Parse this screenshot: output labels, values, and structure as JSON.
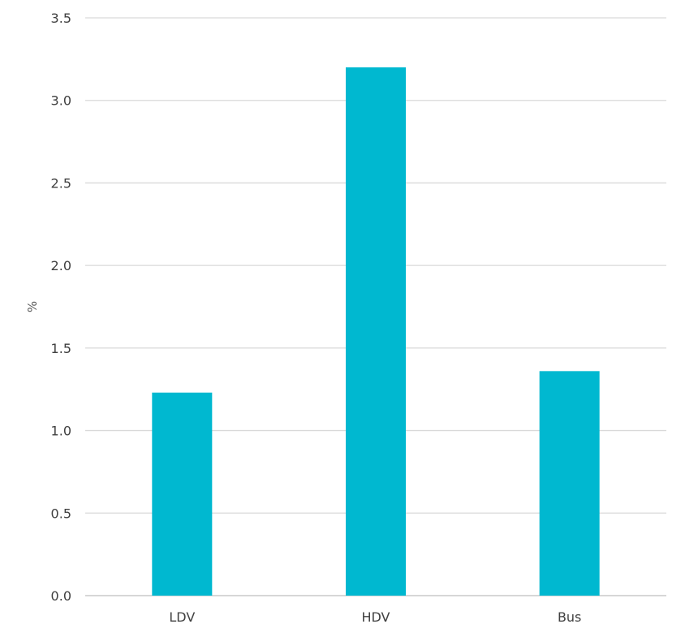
{
  "chart_data": {
    "type": "bar",
    "categories": [
      "LDV",
      "HDV",
      "Bus"
    ],
    "series": [
      {
        "values": [
          1.23,
          3.2,
          1.36
        ],
        "color": "#00b8d0"
      }
    ],
    "xlabel": "",
    "ylabel": "%",
    "ylim": [
      0,
      3.5
    ],
    "yticks": [
      "0.0",
      "0.5",
      "1.0",
      "1.5",
      "2.0",
      "2.5",
      "3.0",
      "3.5"
    ],
    "grid": true,
    "legend": "none",
    "colors": {
      "bar": "#00b8d0",
      "grid": "#d9d9d9",
      "text": "#404040"
    }
  }
}
